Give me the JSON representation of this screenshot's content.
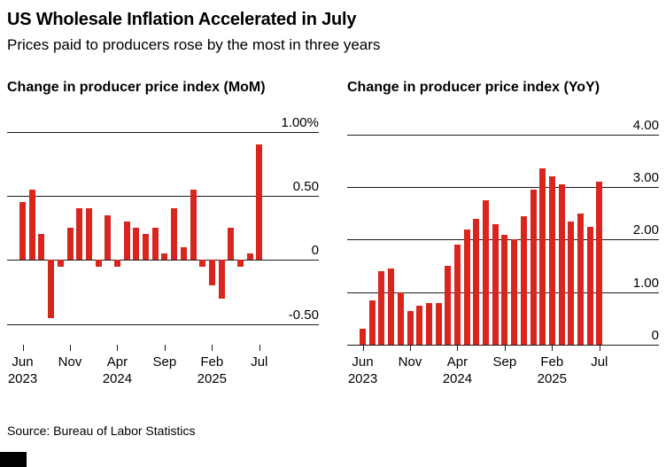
{
  "header": {
    "title": "US Wholesale Inflation Accelerated in July",
    "subtitle": "Prices paid to producers rose by the most in three years"
  },
  "footer": {
    "source": "Source: Bureau of Labor Statistics"
  },
  "colors": {
    "bar": "#d8261f",
    "grid": "#1a1a1a",
    "text": "#000000",
    "background": "#ffffff",
    "brand_bar": "#000000"
  },
  "chart_data": [
    {
      "type": "bar",
      "title": "Change in producer price index (MoM)",
      "unit": "%",
      "legend_position": "none",
      "grid": true,
      "categories": [
        "Jun 2023",
        "Jul 2023",
        "Aug 2023",
        "Sep 2023",
        "Oct 2023",
        "Nov 2023",
        "Dec 2023",
        "Jan 2024",
        "Feb 2024",
        "Mar 2024",
        "Apr 2024",
        "May 2024",
        "Jun 2024",
        "Jul 2024",
        "Aug 2024",
        "Sep 2024",
        "Oct 2024",
        "Nov 2024",
        "Dec 2024",
        "Jan 2025",
        "Feb 2025",
        "Mar 2025",
        "Apr 2025",
        "May 2025",
        "Jun 2025",
        "Jul 2025"
      ],
      "values": [
        0.45,
        0.55,
        0.2,
        -0.45,
        -0.05,
        0.25,
        0.4,
        0.4,
        -0.05,
        0.35,
        -0.05,
        0.3,
        0.25,
        0.2,
        0.25,
        0.05,
        0.4,
        0.1,
        0.55,
        -0.05,
        -0.2,
        -0.3,
        0.25,
        -0.05,
        0.05,
        0.9
      ],
      "ylim": [
        -0.66,
        1.1
      ],
      "yticks": [
        {
          "value": 1.0,
          "label": "1.00%"
        },
        {
          "value": 0.5,
          "label": "0.50"
        },
        {
          "value": 0.0,
          "label": "0"
        },
        {
          "value": -0.5,
          "label": "-0.50"
        }
      ],
      "xticks": [
        {
          "index": 0,
          "lines": [
            "Jun",
            "2023"
          ]
        },
        {
          "index": 5,
          "lines": [
            "Nov"
          ]
        },
        {
          "index": 10,
          "lines": [
            "Apr",
            "2024"
          ]
        },
        {
          "index": 15,
          "lines": [
            "Sep"
          ]
        },
        {
          "index": 20,
          "lines": [
            "Feb",
            "2025"
          ]
        },
        {
          "index": 25,
          "lines": [
            "Jul"
          ]
        }
      ]
    },
    {
      "type": "bar",
      "title": "Change in producer price index (YoY)",
      "unit": "%",
      "legend_position": "none",
      "grid": true,
      "categories": [
        "Jun 2023",
        "Jul 2023",
        "Aug 2023",
        "Sep 2023",
        "Oct 2023",
        "Nov 2023",
        "Dec 2023",
        "Jan 2024",
        "Feb 2024",
        "Mar 2024",
        "Apr 2024",
        "May 2024",
        "Jun 2024",
        "Jul 2024",
        "Aug 2024",
        "Sep 2024",
        "Oct 2024",
        "Nov 2024",
        "Dec 2024",
        "Jan 2025",
        "Feb 2025",
        "Mar 2025",
        "Apr 2025",
        "May 2025",
        "Jun 2025",
        "Jul 2025"
      ],
      "values": [
        0.3,
        0.85,
        1.4,
        1.45,
        1.0,
        0.65,
        0.75,
        0.8,
        0.8,
        1.5,
        1.9,
        2.2,
        2.4,
        2.75,
        2.3,
        2.1,
        2.0,
        2.45,
        2.95,
        3.35,
        3.2,
        3.05,
        2.35,
        2.5,
        2.25,
        3.1
      ],
      "ylim": [
        0,
        4.3
      ],
      "yticks": [
        {
          "value": 4.0,
          "label": "4.00"
        },
        {
          "value": 3.0,
          "label": "3.00"
        },
        {
          "value": 2.0,
          "label": "2.00"
        },
        {
          "value": 1.0,
          "label": "1.00"
        },
        {
          "value": 0.0,
          "label": "0"
        }
      ],
      "xticks": [
        {
          "index": 0,
          "lines": [
            "Jun",
            "2023"
          ]
        },
        {
          "index": 5,
          "lines": [
            "Nov"
          ]
        },
        {
          "index": 10,
          "lines": [
            "Apr",
            "2024"
          ]
        },
        {
          "index": 15,
          "lines": [
            "Sep"
          ]
        },
        {
          "index": 20,
          "lines": [
            "Feb",
            "2025"
          ]
        },
        {
          "index": 25,
          "lines": [
            "Jul"
          ]
        }
      ]
    }
  ]
}
